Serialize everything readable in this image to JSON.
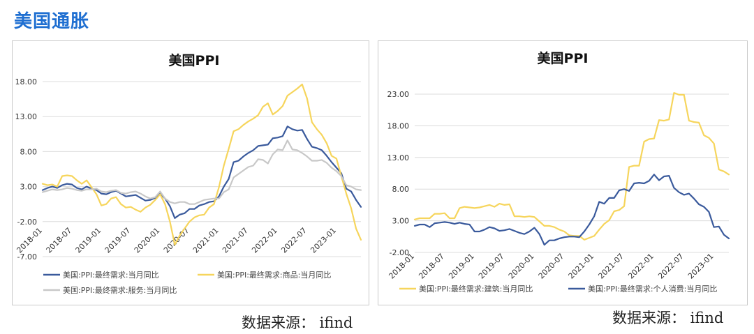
{
  "page": {
    "title": "美国通胀"
  },
  "sources": {
    "left": "数据来源： ifind",
    "right": "数据来源： ifind"
  },
  "colors": {
    "blue": "#3a5a9c",
    "yellow": "#f6d55c",
    "gray": "#c8c8c8",
    "grid": "#dcdcdc",
    "title_blue": "#1f6fd1"
  },
  "chart_data": [
    {
      "type": "line",
      "title": "美国PPI",
      "ylim": [
        -7,
        18
      ],
      "yticks": [
        "18.00",
        "13.00",
        "8.00",
        "3.00",
        "-2.00",
        "-7.00"
      ],
      "ytick_values": [
        18,
        13,
        8,
        3,
        -2,
        -7
      ],
      "xticks": [
        "2018-01",
        "2018-07",
        "2019-01",
        "2019-07",
        "2020-01",
        "2020-07",
        "2021-01",
        "2021-07",
        "2022-01",
        "2022-07",
        "2023-01"
      ],
      "x_start": "2018-01",
      "legend_position": "bottom",
      "grid": true,
      "series": [
        {
          "name": "美国:PPI:最终需求:当月同比",
          "color": "#3a5a9c",
          "values": [
            2.5,
            2.8,
            3.0,
            2.8,
            3.2,
            3.4,
            3.3,
            2.8,
            2.6,
            3.0,
            2.7,
            2.5,
            2.0,
            1.9,
            2.2,
            2.4,
            2.0,
            1.6,
            1.7,
            1.8,
            1.4,
            1.0,
            1.1,
            1.4,
            2.0,
            1.3,
            0.2,
            -1.5,
            -1.0,
            -0.8,
            -0.2,
            -0.2,
            0.3,
            0.5,
            0.8,
            0.9,
            1.6,
            3.0,
            4.1,
            6.5,
            6.7,
            7.3,
            7.8,
            8.2,
            8.8,
            8.9,
            9.0,
            9.9,
            10.0,
            10.2,
            11.6,
            11.2,
            11.0,
            11.1,
            9.8,
            8.7,
            8.5,
            8.2,
            7.4,
            6.5,
            5.7,
            4.9,
            2.7,
            2.3,
            1.1,
            0.1
          ]
        },
        {
          "name": "美国:PPI:最终需求:商品:当月同比",
          "color": "#f6d55c",
          "values": [
            3.4,
            3.2,
            3.3,
            3.0,
            4.5,
            4.6,
            4.5,
            3.9,
            3.4,
            3.9,
            2.9,
            1.9,
            0.3,
            0.5,
            1.3,
            1.5,
            0.5,
            0.0,
            0.1,
            -0.3,
            -0.6,
            0.0,
            0.4,
            1.1,
            1.9,
            0.5,
            -2.0,
            -5.3,
            -4.0,
            -3.0,
            -2.0,
            -1.4,
            -1.1,
            -1.0,
            0.0,
            0.5,
            2.9,
            6.0,
            8.4,
            10.9,
            11.2,
            11.8,
            12.3,
            12.7,
            13.2,
            14.4,
            14.9,
            13.3,
            13.8,
            14.5,
            16.0,
            16.5,
            17.0,
            17.6,
            15.6,
            12.2,
            11.2,
            10.4,
            9.2,
            7.4,
            7.0,
            4.5,
            2.0,
            -0.1,
            -3.0,
            -4.6
          ]
        },
        {
          "name": "美国:PPI:最终需求:服务:当月同比",
          "color": "#c8c8c8",
          "values": [
            2.2,
            2.4,
            2.6,
            2.5,
            2.6,
            2.8,
            2.7,
            2.5,
            2.4,
            2.6,
            2.6,
            2.7,
            2.3,
            2.2,
            2.4,
            2.5,
            2.1,
            2.0,
            2.2,
            2.3,
            2.0,
            1.6,
            1.3,
            1.5,
            2.3,
            1.3,
            0.8,
            0.6,
            0.8,
            0.8,
            0.5,
            0.5,
            0.8,
            1.1,
            1.2,
            1.3,
            1.3,
            2.2,
            2.6,
            4.3,
            4.8,
            5.3,
            5.8,
            6.0,
            6.9,
            6.8,
            6.3,
            7.6,
            8.3,
            8.2,
            9.6,
            8.3,
            8.2,
            7.8,
            7.3,
            6.7,
            6.7,
            6.8,
            6.4,
            5.7,
            5.2,
            4.5,
            3.2,
            3.0,
            2.6,
            2.5
          ]
        }
      ]
    },
    {
      "type": "line",
      "title": "美国PPI",
      "ylim": [
        -2,
        23
      ],
      "yticks": [
        "23.00",
        "18.00",
        "13.00",
        "8.00",
        "3.00",
        "-2.00"
      ],
      "ytick_values": [
        23,
        18,
        13,
        8,
        3,
        -2
      ],
      "xticks": [
        "2018-01",
        "2018-07",
        "2019-01",
        "2019-07",
        "2020-01",
        "2020-07",
        "2021-01",
        "2021-07",
        "2022-01",
        "2022-07",
        "2023-01"
      ],
      "x_start": "2018-01",
      "legend_position": "bottom",
      "grid": true,
      "series": [
        {
          "name": "美国:PPI:最终需求:建筑:当月同比",
          "color": "#f6d55c",
          "values": [
            3.2,
            3.4,
            3.4,
            3.4,
            4.1,
            4.1,
            4.2,
            3.4,
            3.4,
            5.0,
            5.2,
            5.1,
            5.0,
            5.1,
            5.3,
            5.5,
            5.2,
            5.7,
            5.5,
            5.6,
            3.7,
            3.7,
            3.6,
            3.7,
            3.6,
            2.9,
            2.2,
            2.2,
            2.0,
            1.6,
            1.3,
            0.7,
            0.6,
            0.6,
            0.0,
            0.3,
            0.6,
            1.6,
            2.5,
            3.1,
            4.5,
            4.7,
            5.3,
            11.5,
            11.7,
            11.7,
            15.5,
            15.9,
            16.0,
            18.9,
            18.8,
            19.0,
            23.2,
            22.9,
            22.9,
            18.8,
            18.6,
            18.5,
            16.5,
            16.1,
            15.2,
            11.1,
            10.8,
            10.3
          ]
        },
        {
          "name": "美国:PPI:最终需求:个人消费:当月同比",
          "color": "#3a5a9c",
          "values": [
            2.2,
            2.4,
            2.4,
            2.0,
            2.6,
            2.7,
            2.8,
            2.7,
            2.5,
            2.7,
            2.5,
            2.4,
            1.3,
            1.3,
            1.6,
            2.0,
            1.8,
            1.4,
            1.5,
            1.7,
            1.4,
            1.1,
            0.9,
            1.3,
            1.9,
            0.9,
            -0.8,
            -0.1,
            -0.1,
            0.2,
            0.4,
            0.5,
            0.5,
            0.4,
            1.3,
            2.4,
            3.7,
            6.0,
            5.7,
            6.6,
            6.6,
            7.8,
            8.0,
            7.7,
            8.9,
            9.0,
            8.9,
            9.3,
            10.3,
            9.4,
            10.0,
            10.1,
            8.2,
            7.5,
            7.1,
            7.3,
            6.5,
            5.6,
            5.2,
            4.4,
            2.0,
            2.1,
            0.8,
            0.2
          ]
        }
      ]
    }
  ]
}
